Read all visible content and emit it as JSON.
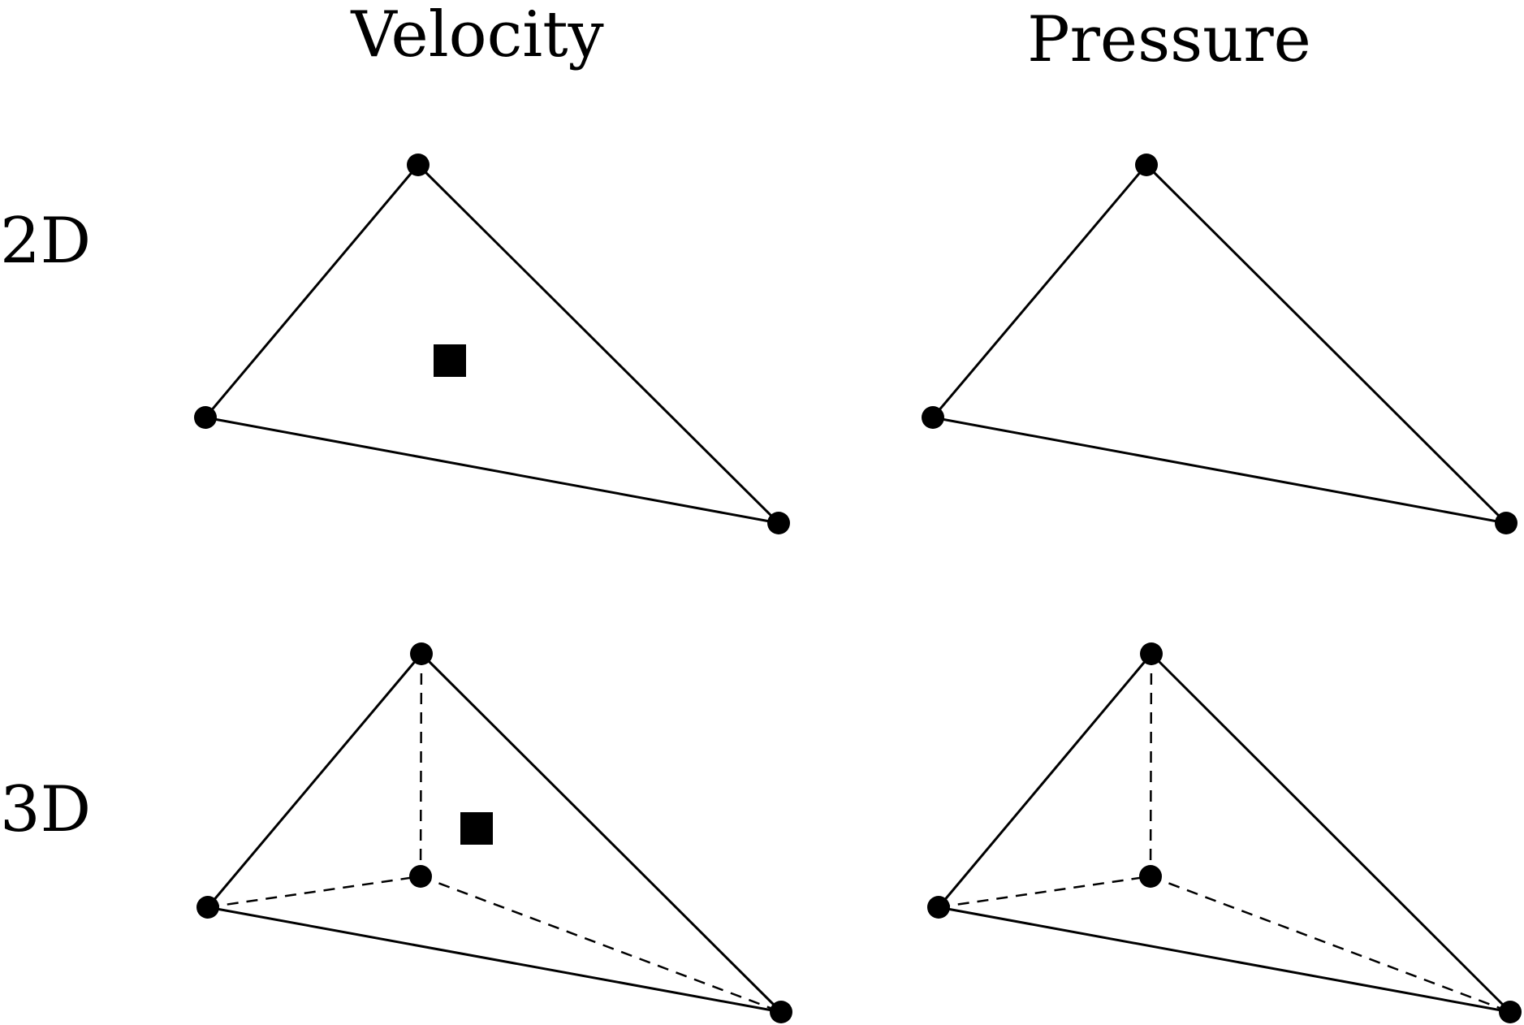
{
  "columns": [
    {
      "label": "Velocity"
    },
    {
      "label": "Pressure"
    }
  ],
  "rows": [
    {
      "label": "2D"
    },
    {
      "label": "3D"
    }
  ],
  "style": {
    "ink": "#000000",
    "background": "#ffffff"
  },
  "legend_glyphs": {
    "vertex_node": "filled-circle",
    "interior_node": "filled-square"
  }
}
